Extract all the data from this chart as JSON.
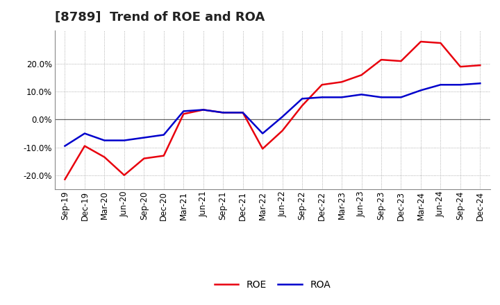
{
  "title": "[8789]  Trend of ROE and ROA",
  "x_labels": [
    "Sep-19",
    "Dec-19",
    "Mar-20",
    "Jun-20",
    "Sep-20",
    "Dec-20",
    "Mar-21",
    "Jun-21",
    "Sep-21",
    "Dec-21",
    "Mar-22",
    "Jun-22",
    "Sep-22",
    "Dec-22",
    "Mar-23",
    "Jun-23",
    "Sep-23",
    "Dec-23",
    "Mar-24",
    "Jun-24",
    "Sep-24",
    "Dec-24"
  ],
  "roe": [
    -21.5,
    -9.5,
    -13.5,
    -20.0,
    -14.0,
    -13.0,
    2.0,
    3.5,
    2.5,
    2.5,
    -10.5,
    -4.0,
    5.0,
    12.5,
    13.5,
    16.0,
    21.5,
    21.0,
    28.0,
    27.5,
    19.0,
    19.5
  ],
  "roa": [
    -9.5,
    -5.0,
    -7.5,
    -7.5,
    -6.5,
    -5.5,
    3.0,
    3.5,
    2.5,
    2.5,
    -5.0,
    1.0,
    7.5,
    8.0,
    8.0,
    9.0,
    8.0,
    8.0,
    10.5,
    12.5,
    12.5,
    13.0
  ],
  "roe_color": "#e8000d",
  "roa_color": "#0000cc",
  "background_color": "#ffffff",
  "plot_background_color": "#ffffff",
  "ylim": [
    -25,
    32
  ],
  "yticks": [
    -20.0,
    -10.0,
    0.0,
    10.0,
    20.0
  ],
  "legend_roe": "ROE",
  "legend_roa": "ROA",
  "title_fontsize": 13,
  "axis_fontsize": 8.5,
  "legend_fontsize": 10,
  "line_width": 1.8
}
